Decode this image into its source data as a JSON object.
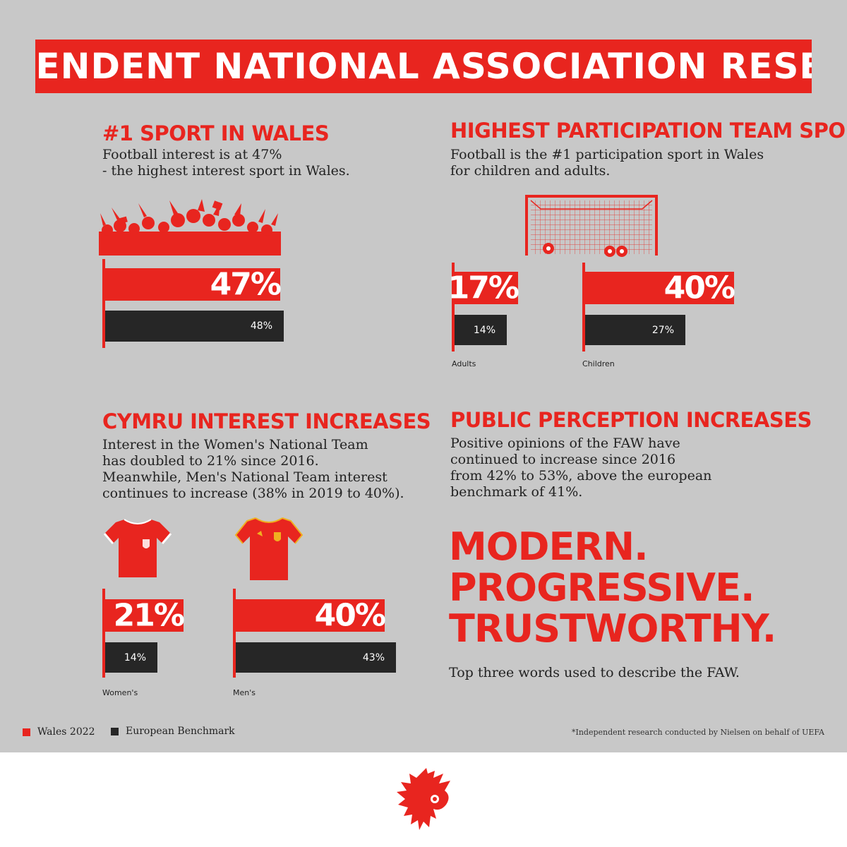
{
  "banner": {
    "title": "INDEPENDENT NATIONAL ASSOCIATION RESEARCH"
  },
  "sections": {
    "sport": {
      "heading": "#1 SPORT IN WALES",
      "lines": [
        "Football interest is at 47%",
        "- the highest interest sport in Wales."
      ]
    },
    "participation": {
      "heading": "HIGHEST PARTICIPATION TEAM SPORT",
      "lines": [
        "Football is the #1 participation sport in Wales",
        "for children and adults."
      ]
    },
    "cymru": {
      "heading": "CYMRU INTEREST INCREASES",
      "lines": [
        "Interest in the Women's National Team",
        "has doubled to 21% since 2016.",
        "Meanwhile, Men's National Team interest",
        "continues to increase (38% in 2019 to 40%)."
      ]
    },
    "perception": {
      "heading": "PUBLIC PERCEPTION INCREASES",
      "lines": [
        "Positive opinions of the FAW have",
        "continued to increase since 2016",
        "from 42% to 53%, above the european",
        "benchmark of 41%."
      ]
    }
  },
  "tagline": {
    "words": [
      "MODERN.",
      "PROGRESSIVE.",
      "TRUSTWORTHY."
    ],
    "caption": "Top three words used to describe the FAW."
  },
  "legend": {
    "wales": "Wales 2022",
    "europe": "European Benchmark",
    "wales_color": "#e8251f",
    "europe_color": "#262626"
  },
  "footnote": "*Independent research conducted by Nielsen on behalf of UEFA",
  "chart_data": [
    {
      "type": "bar",
      "categories": [
        ""
      ],
      "series": [
        {
          "name": "Wales 2022",
          "values": [
            47
          ],
          "labels": [
            "47%"
          ]
        },
        {
          "name": "European Benchmark",
          "values": [
            48
          ],
          "labels": [
            "48%"
          ]
        }
      ]
    },
    {
      "type": "bar",
      "categories": [
        "Adults",
        "Children"
      ],
      "series": [
        {
          "name": "Wales 2022",
          "values": [
            17,
            40
          ],
          "labels": [
            "17%",
            "40%"
          ]
        },
        {
          "name": "European Benchmark",
          "values": [
            14,
            27
          ],
          "labels": [
            "14%",
            "27%"
          ]
        }
      ]
    },
    {
      "type": "bar",
      "categories": [
        "Women's",
        "Men's"
      ],
      "series": [
        {
          "name": "Wales 2022",
          "values": [
            21,
            40
          ],
          "labels": [
            "21%",
            "40%"
          ]
        },
        {
          "name": "European Benchmark",
          "values": [
            14,
            43
          ],
          "labels": [
            "14%",
            "43%"
          ]
        }
      ]
    }
  ]
}
